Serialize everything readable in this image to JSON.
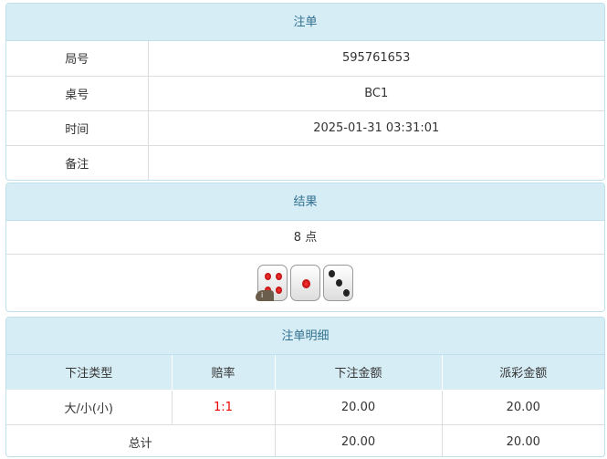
{
  "bet": {
    "title": "注单",
    "rows": [
      {
        "label": "局号",
        "value": "595761653"
      },
      {
        "label": "桌号",
        "value": "BC1"
      },
      {
        "label": "时间",
        "value": "2025-01-31 03:31:01"
      },
      {
        "label": "备注",
        "value": ""
      }
    ]
  },
  "result": {
    "title": "结果",
    "text": "8 点",
    "dice": [
      4,
      1,
      3
    ],
    "info_badge": "i"
  },
  "detail": {
    "title": "注单明细",
    "headers": [
      "下注类型",
      "赔率",
      "下注金额",
      "派彩金额"
    ],
    "rows": [
      {
        "type": "大/小(小)",
        "odds": "1:1",
        "amount": "20.00",
        "payout": "20.00"
      }
    ],
    "total": {
      "label": "总计",
      "amount": "20.00",
      "payout": "20.00"
    }
  },
  "colors": {
    "header_bg": "#d7edf5",
    "header_text": "#31708f",
    "odds": "#ee0000"
  }
}
